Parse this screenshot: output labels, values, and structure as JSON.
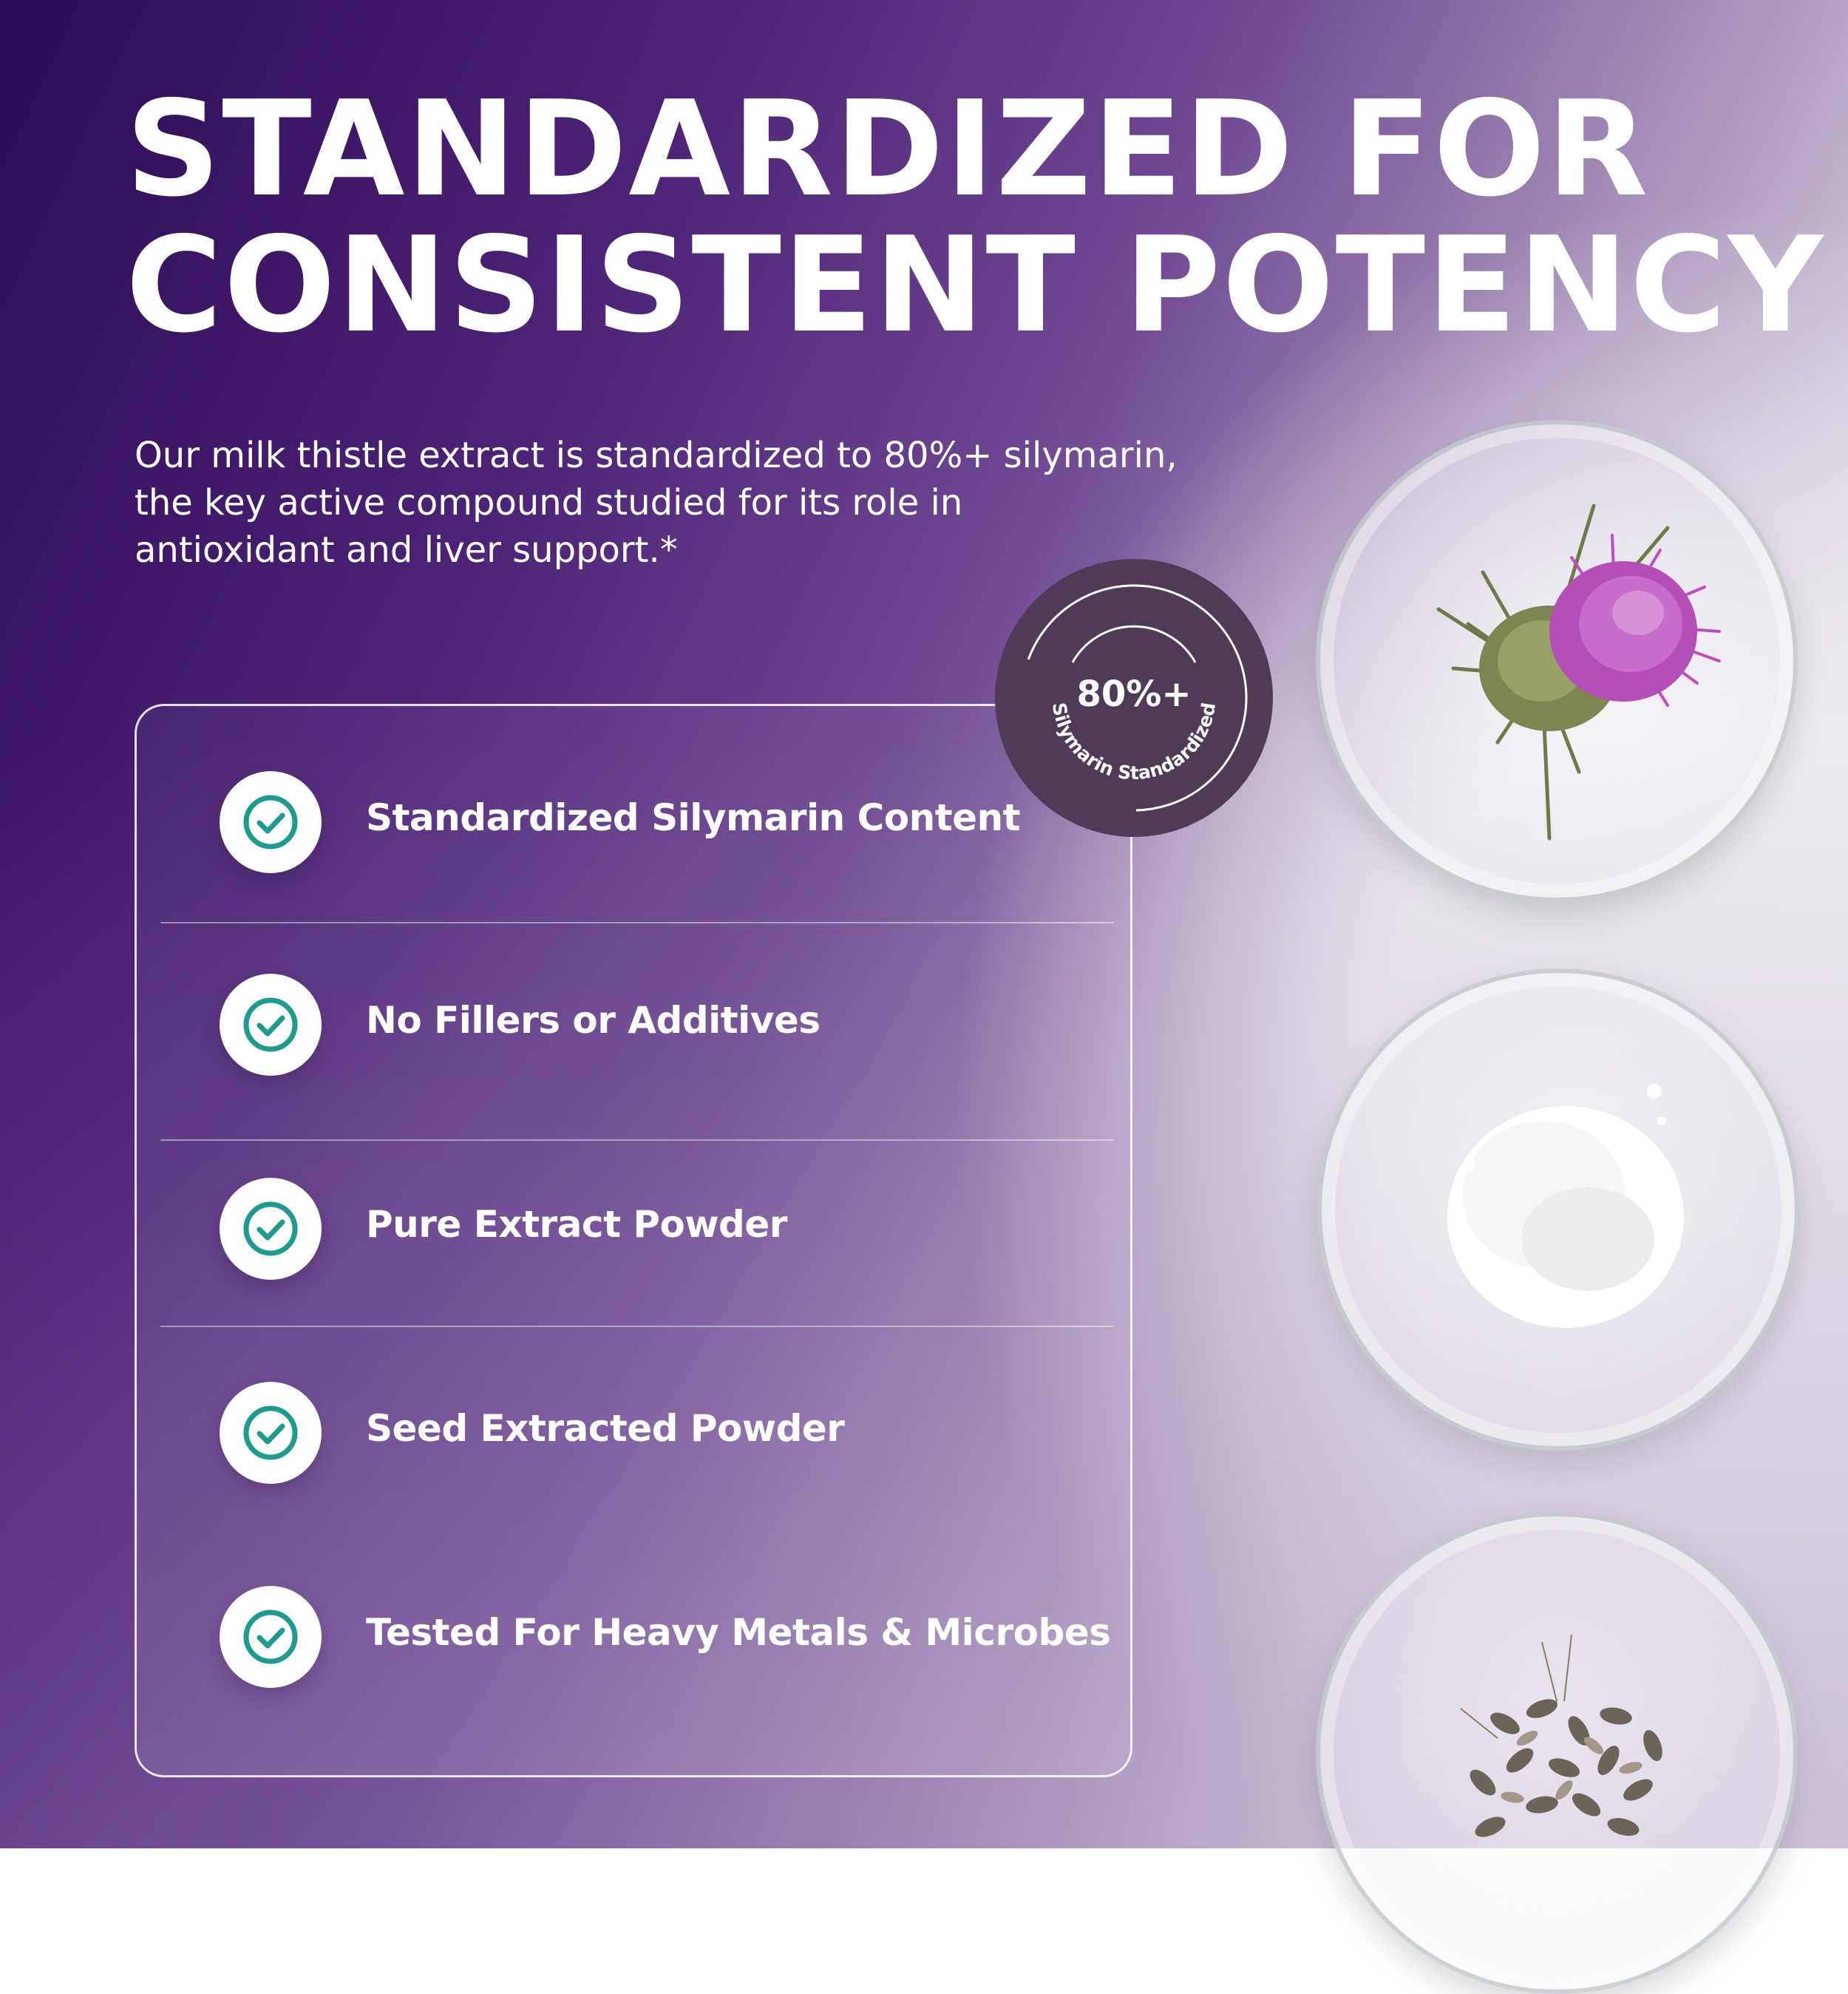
{
  "headline": {
    "line1": "STANDARDIZED FOR",
    "line2": "CONSISTENT POTENCY"
  },
  "intro": {
    "line1": "Our milk thistle extract is standardized to 80%+ silymarin,",
    "line2": "the key active compound studied for its role in",
    "line3": "antioxidant and liver support.*"
  },
  "badge": {
    "value": "80%+",
    "curved_label": "Silymarin Standardized"
  },
  "features": [
    {
      "label": "Standardized Silymarin Content",
      "icon": "check-icon"
    },
    {
      "label": "No Fillers or Additives",
      "icon": "check-icon"
    },
    {
      "label": "Pure Extract Powder",
      "icon": "check-icon"
    },
    {
      "label": "Seed Extracted Powder",
      "icon": "check-icon"
    },
    {
      "label": "Tested For Heavy Metals & Microbes",
      "icon": "check-icon"
    }
  ],
  "colors": {
    "background_dark": "#2e0c55",
    "background_light": "#efeef0",
    "check": "#1e9b8f",
    "badge": "#4f3a57",
    "text": "#ffffff",
    "thistle_flower": "#b04ab6"
  },
  "images": [
    {
      "name": "thistle-flower-dish"
    },
    {
      "name": "extract-powder-dish"
    },
    {
      "name": "thistle-seeds-dish"
    }
  ]
}
